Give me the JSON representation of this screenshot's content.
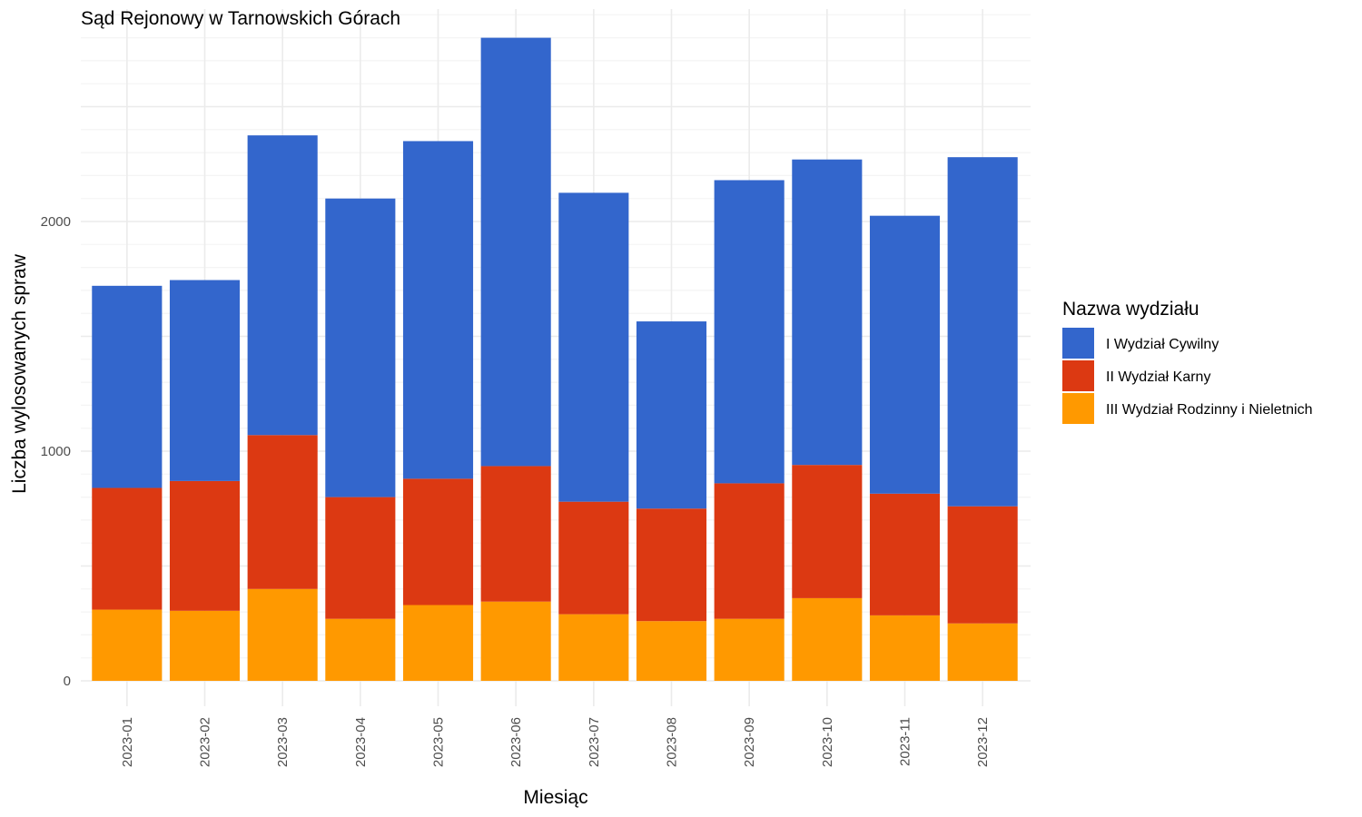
{
  "chart_data": {
    "type": "bar",
    "stacked": true,
    "title": "Sąd Rejonowy w Tarnowskich Górach",
    "xlabel": "Miesiąc",
    "ylabel": "Liczba wylosowanych spraw",
    "ylim": [
      0,
      2900
    ],
    "y_ticks": [
      "0",
      "1000",
      "2000"
    ],
    "y_tick_values": [
      0,
      1000,
      2000
    ],
    "grid": true,
    "legend_position": "right",
    "legend_title": "Nazwa wydziału",
    "categories": [
      "2023-01",
      "2023-02",
      "2023-03",
      "2023-04",
      "2023-05",
      "2023-06",
      "2023-07",
      "2023-08",
      "2023-09",
      "2023-10",
      "2023-11",
      "2023-12"
    ],
    "series": [
      {
        "name": "III Wydział Rodzinny i Nieletnich",
        "color": "#FF9900",
        "values": [
          310,
          305,
          400,
          270,
          330,
          345,
          290,
          260,
          270,
          360,
          285,
          250
        ]
      },
      {
        "name": "II Wydział Karny",
        "color": "#DC3912",
        "values": [
          530,
          565,
          670,
          530,
          550,
          590,
          490,
          490,
          590,
          580,
          530,
          510
        ]
      },
      {
        "name": "I Wydział Cywilny",
        "color": "#3366CC",
        "values": [
          880,
          875,
          1305,
          1300,
          1470,
          1865,
          1345,
          815,
          1320,
          1330,
          1210,
          1520
        ]
      }
    ],
    "legend_order": [
      "I Wydział Cywilny",
      "II Wydział Karny",
      "III Wydział Rodzinny i Nieletnich"
    ]
  }
}
